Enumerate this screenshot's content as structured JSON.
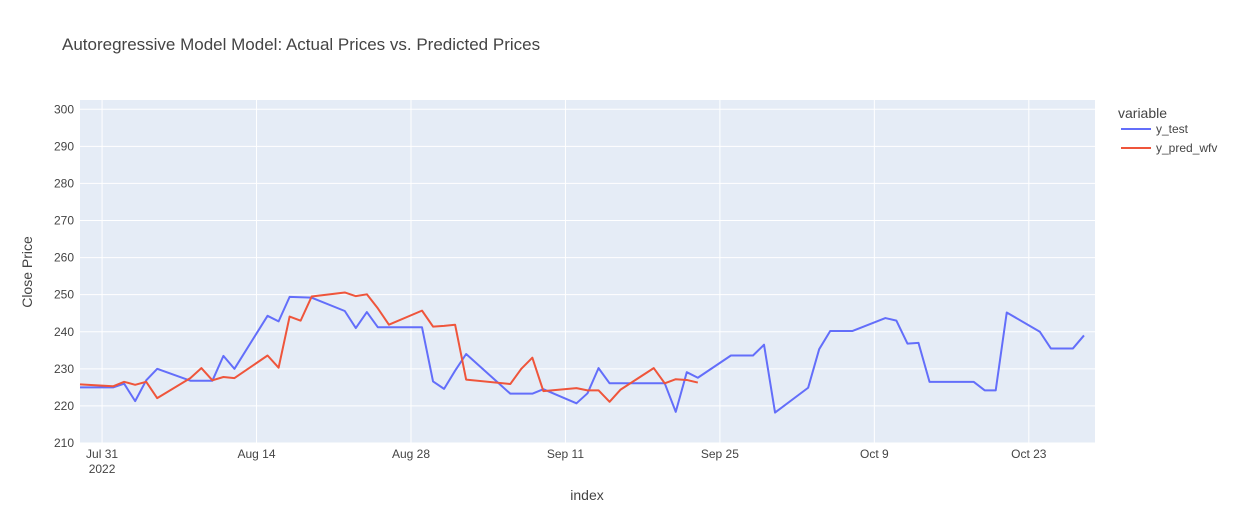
{
  "chart_data": {
    "type": "line",
    "title": "Autoregressive Model Model: Actual Prices vs. Predicted Prices",
    "xlabel": "index",
    "ylabel": "Close Price",
    "legend_title": "variable",
    "legend_position": "right",
    "grid": true,
    "colors": {
      "plot_bg": "#E5ECF6",
      "grid": "#FFFFFF",
      "y_test": "#636EFA",
      "y_pred_wfv": "#EF553B"
    },
    "ylim": [
      210,
      302.5
    ],
    "xlim": [
      "2022-07-29",
      "2022-10-29"
    ],
    "x_ticks": [
      {
        "date": "2022-07-31",
        "label": "Jul 31",
        "sublabel": "2022"
      },
      {
        "date": "2022-08-14",
        "label": "Aug 14"
      },
      {
        "date": "2022-08-28",
        "label": "Aug 28"
      },
      {
        "date": "2022-09-11",
        "label": "Sep 11"
      },
      {
        "date": "2022-09-25",
        "label": "Sep 25"
      },
      {
        "date": "2022-10-09",
        "label": "Oct 9"
      },
      {
        "date": "2022-10-23",
        "label": "Oct 23"
      }
    ],
    "y_ticks": [
      210,
      220,
      230,
      240,
      250,
      260,
      270,
      280,
      290,
      300
    ],
    "series": [
      {
        "name": "y_test",
        "points": [
          [
            "2022-07-29",
            225.0
          ],
          [
            "2022-08-01",
            225.0
          ],
          [
            "2022-08-02",
            226.0
          ],
          [
            "2022-08-03",
            221.3
          ],
          [
            "2022-08-04",
            226.9
          ],
          [
            "2022-08-05",
            230.0
          ],
          [
            "2022-08-08",
            226.8
          ],
          [
            "2022-08-09",
            226.8
          ],
          [
            "2022-08-10",
            226.8
          ],
          [
            "2022-08-11",
            233.5
          ],
          [
            "2022-08-12",
            230.0
          ],
          [
            "2022-08-15",
            244.3
          ],
          [
            "2022-08-16",
            242.8
          ],
          [
            "2022-08-17",
            249.4
          ],
          [
            "2022-08-18",
            249.3
          ],
          [
            "2022-08-19",
            249.2
          ],
          [
            "2022-08-22",
            245.6
          ],
          [
            "2022-08-23",
            241.0
          ],
          [
            "2022-08-24",
            245.3
          ],
          [
            "2022-08-25",
            241.2
          ],
          [
            "2022-08-26",
            241.2
          ],
          [
            "2022-08-29",
            241.2
          ],
          [
            "2022-08-30",
            226.6
          ],
          [
            "2022-08-31",
            224.6
          ],
          [
            "2022-09-01",
            229.5
          ],
          [
            "2022-09-02",
            234.0
          ],
          [
            "2022-09-06",
            223.3
          ],
          [
            "2022-09-07",
            223.3
          ],
          [
            "2022-09-08",
            223.3
          ],
          [
            "2022-09-09",
            224.5
          ],
          [
            "2022-09-12",
            220.7
          ],
          [
            "2022-09-13",
            223.4
          ],
          [
            "2022-09-14",
            230.2
          ],
          [
            "2022-09-15",
            226.1
          ],
          [
            "2022-09-16",
            226.1
          ],
          [
            "2022-09-19",
            226.1
          ],
          [
            "2022-09-20",
            226.1
          ],
          [
            "2022-09-21",
            218.4
          ],
          [
            "2022-09-22",
            229.1
          ],
          [
            "2022-09-23",
            227.6
          ],
          [
            "2022-09-26",
            233.6
          ],
          [
            "2022-09-27",
            233.6
          ],
          [
            "2022-09-28",
            233.6
          ],
          [
            "2022-09-29",
            236.5
          ],
          [
            "2022-09-30",
            218.2
          ],
          [
            "2022-10-03",
            224.9
          ],
          [
            "2022-10-04",
            235.3
          ],
          [
            "2022-10-05",
            240.2
          ],
          [
            "2022-10-06",
            240.2
          ],
          [
            "2022-10-07",
            240.2
          ],
          [
            "2022-10-10",
            243.7
          ],
          [
            "2022-10-11",
            243.0
          ],
          [
            "2022-10-12",
            236.8
          ],
          [
            "2022-10-13",
            237.0
          ],
          [
            "2022-10-14",
            226.5
          ],
          [
            "2022-10-17",
            226.5
          ],
          [
            "2022-10-18",
            226.5
          ],
          [
            "2022-10-19",
            224.2
          ],
          [
            "2022-10-20",
            224.2
          ],
          [
            "2022-10-21",
            245.2
          ],
          [
            "2022-10-24",
            240.0
          ],
          [
            "2022-10-25",
            235.5
          ],
          [
            "2022-10-26",
            235.5
          ],
          [
            "2022-10-27",
            235.5
          ],
          [
            "2022-10-28",
            239.0
          ]
        ]
      },
      {
        "name": "y_pred_wfv",
        "points": [
          [
            "2022-07-29",
            225.8
          ],
          [
            "2022-08-01",
            225.3
          ],
          [
            "2022-08-02",
            226.5
          ],
          [
            "2022-08-03",
            225.7
          ],
          [
            "2022-08-04",
            226.5
          ],
          [
            "2022-08-05",
            222.1
          ],
          [
            "2022-08-08",
            227.5
          ],
          [
            "2022-08-09",
            230.2
          ],
          [
            "2022-08-10",
            226.9
          ],
          [
            "2022-08-11",
            227.8
          ],
          [
            "2022-08-12",
            227.5
          ],
          [
            "2022-08-15",
            233.6
          ],
          [
            "2022-08-16",
            230.3
          ],
          [
            "2022-08-17",
            244.1
          ],
          [
            "2022-08-18",
            243.0
          ],
          [
            "2022-08-19",
            249.5
          ],
          [
            "2022-08-22",
            250.6
          ],
          [
            "2022-08-23",
            249.6
          ],
          [
            "2022-08-24",
            250.1
          ],
          [
            "2022-08-25",
            246.3
          ],
          [
            "2022-08-26",
            241.9
          ],
          [
            "2022-08-29",
            245.7
          ],
          [
            "2022-08-30",
            241.4
          ],
          [
            "2022-08-31",
            241.6
          ],
          [
            "2022-09-01",
            241.9
          ],
          [
            "2022-09-02",
            227.1
          ],
          [
            "2022-09-06",
            225.9
          ],
          [
            "2022-09-07",
            230.0
          ],
          [
            "2022-09-08",
            233.0
          ],
          [
            "2022-09-09",
            224.0
          ],
          [
            "2022-09-12",
            224.8
          ],
          [
            "2022-09-13",
            224.2
          ],
          [
            "2022-09-14",
            224.2
          ],
          [
            "2022-09-15",
            221.1
          ],
          [
            "2022-09-16",
            224.4
          ],
          [
            "2022-09-19",
            230.2
          ],
          [
            "2022-09-20",
            226.1
          ],
          [
            "2022-09-21",
            227.2
          ],
          [
            "2022-09-22",
            227.0
          ],
          [
            "2022-09-23",
            226.3
          ]
        ]
      }
    ]
  }
}
